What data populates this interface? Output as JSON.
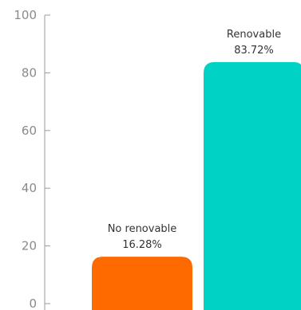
{
  "chart_data": {
    "type": "bar",
    "categories": [
      "No renovable",
      "Renovable"
    ],
    "values": [
      16.28,
      83.72
    ],
    "value_labels": [
      "16.28%",
      "83.72%"
    ],
    "colors": [
      "#ff6a00",
      "#00d2c6"
    ],
    "title": "",
    "xlabel": "",
    "ylabel": "",
    "ylim": [
      0,
      100
    ],
    "yticks": [
      {
        "value": 0,
        "label": "0"
      },
      {
        "value": 20,
        "label": "20"
      },
      {
        "value": 40,
        "label": "40"
      },
      {
        "value": 60,
        "label": "60"
      },
      {
        "value": 80,
        "label": "80"
      },
      {
        "value": 100,
        "label": "100"
      }
    ],
    "grid": false,
    "legend": "none"
  }
}
